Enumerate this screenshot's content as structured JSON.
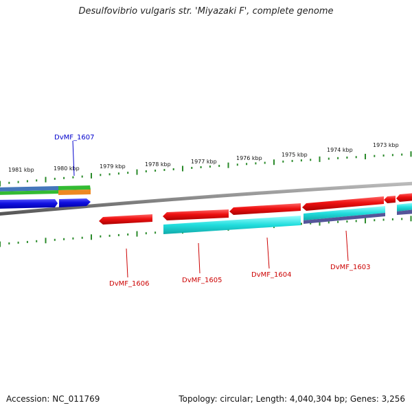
{
  "title": "Desulfovibrio vulgaris str. 'Miyazaki F', complete genome",
  "footer": {
    "accession": "Accession: NC_011769",
    "summary": "Topology: circular; Length: 4,040,304 bp; Genes: 3,256"
  },
  "ruler_labels": [
    "1981 kbp",
    "1980 kbp",
    "1979 kbp",
    "1978 kbp",
    "1977 kbp",
    "1976 kbp",
    "1975 kbp",
    "1974 kbp",
    "1973 kbp"
  ],
  "gene_labels": [
    {
      "name": "DvMF_1607",
      "color": "#0000cc"
    },
    {
      "name": "DvMF_1606",
      "color": "#cc0000"
    },
    {
      "name": "DvMF_1605",
      "color": "#cc0000"
    },
    {
      "name": "DvMF_1604",
      "color": "#cc0000"
    },
    {
      "name": "DvMF_1603",
      "color": "#cc0000"
    }
  ],
  "colors": {
    "backbone": "#8a8a8a",
    "tick": "#2a8a2a",
    "forward_gene": "#1010e0",
    "reverse_gene": "#ee1111",
    "forward_cds": "#22dddd",
    "reverse_cds": "#555599",
    "gene_strip_green": "#33bb33",
    "gene_strip_orange": "#ee8822",
    "gene_strip_blue": "#4477bb"
  }
}
